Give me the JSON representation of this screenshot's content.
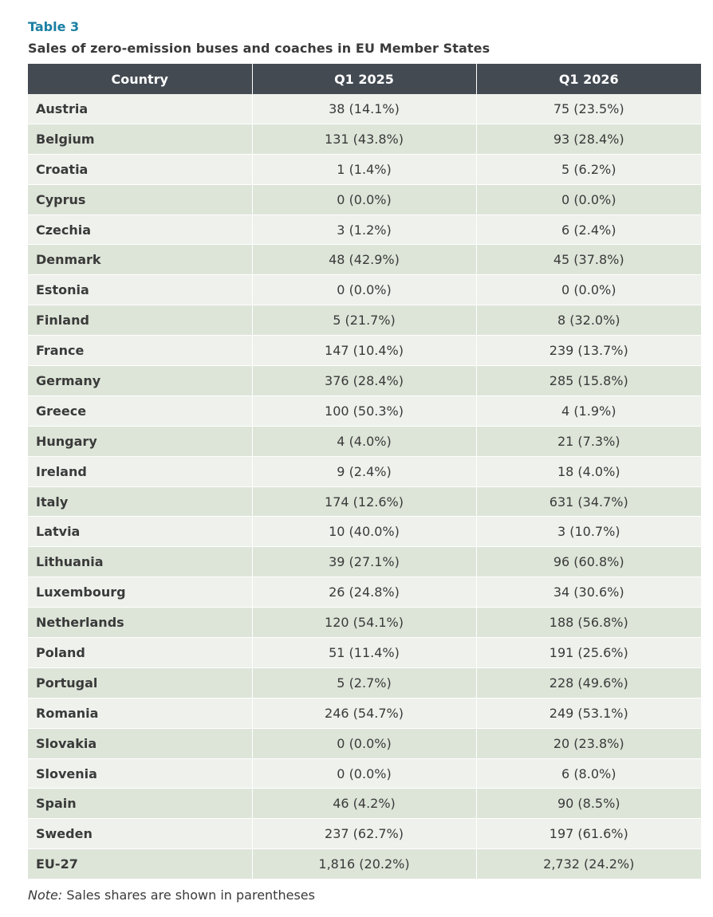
{
  "header": {
    "table_label": "Table 3",
    "title": "Sales of zero-emission buses and coaches in EU Member States"
  },
  "table": {
    "columns": [
      "Country",
      "Q1 2025",
      "Q1 2026"
    ],
    "rows": [
      [
        "Austria",
        "38 (14.1%)",
        "75 (23.5%)"
      ],
      [
        "Belgium",
        "131 (43.8%)",
        "93 (28.4%)"
      ],
      [
        "Croatia",
        "1 (1.4%)",
        "5 (6.2%)"
      ],
      [
        "Cyprus",
        "0 (0.0%)",
        "0 (0.0%)"
      ],
      [
        "Czechia",
        "3 (1.2%)",
        "6 (2.4%)"
      ],
      [
        "Denmark",
        "48 (42.9%)",
        "45 (37.8%)"
      ],
      [
        "Estonia",
        "0 (0.0%)",
        "0 (0.0%)"
      ],
      [
        "Finland",
        "5 (21.7%)",
        "8 (32.0%)"
      ],
      [
        "France",
        "147 (10.4%)",
        "239 (13.7%)"
      ],
      [
        "Germany",
        "376 (28.4%)",
        "285 (15.8%)"
      ],
      [
        "Greece",
        "100 (50.3%)",
        "4 (1.9%)"
      ],
      [
        "Hungary",
        "4 (4.0%)",
        "21 (7.3%)"
      ],
      [
        "Ireland",
        "9 (2.4%)",
        "18 (4.0%)"
      ],
      [
        "Italy",
        "174 (12.6%)",
        "631 (34.7%)"
      ],
      [
        "Latvia",
        "10 (40.0%)",
        "3 (10.7%)"
      ],
      [
        "Lithuania",
        "39 (27.1%)",
        "96 (60.8%)"
      ],
      [
        "Luxembourg",
        "26 (24.8%)",
        "34 (30.6%)"
      ],
      [
        "Netherlands",
        "120 (54.1%)",
        "188 (56.8%)"
      ],
      [
        "Poland",
        "51 (11.4%)",
        "191 (25.6%)"
      ],
      [
        "Portugal",
        "5 (2.7%)",
        "228 (49.6%)"
      ],
      [
        "Romania",
        "246 (54.7%)",
        "249 (53.1%)"
      ],
      [
        "Slovakia",
        "0 (0.0%)",
        "20 (23.8%)"
      ],
      [
        "Slovenia",
        "0 (0.0%)",
        "6 (8.0%)"
      ],
      [
        "Spain",
        "46 (4.2%)",
        "90 (8.5%)"
      ],
      [
        "Sweden",
        "237 (62.7%)",
        "197 (61.6%)"
      ],
      [
        "EU-27",
        "1,816 (20.2%)",
        "2,732 (24.2%)"
      ]
    ]
  },
  "note": {
    "label": "Note:",
    "text": " Sales shares are shown in parentheses"
  },
  "colors": {
    "label_accent": "#1a7fa3",
    "header_bg": "#434a52",
    "row_odd_bg": "#eef1ec",
    "row_even_bg": "#dde5d8"
  }
}
